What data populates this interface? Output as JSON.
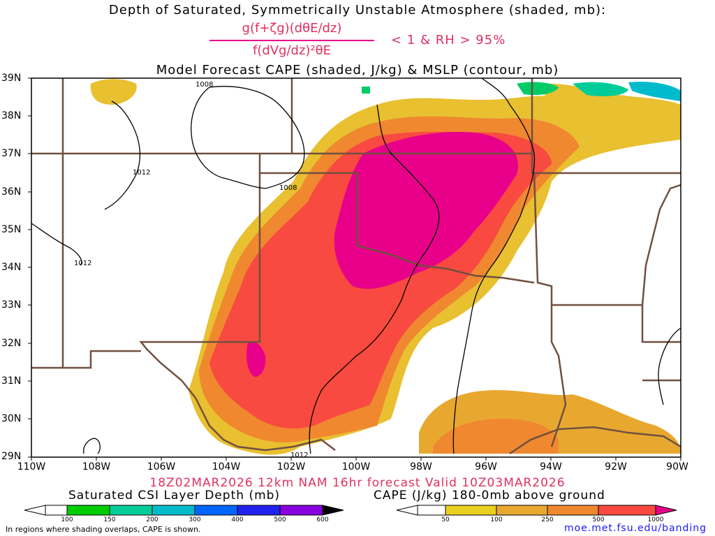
{
  "title_line1": "Depth of Saturated, Symmetrically Unstable Atmosphere (shaded, mb):",
  "formula": {
    "numerator": "g(f+ζg)(dθE/dz)",
    "denominator": "f(dVg/dz)²θE",
    "condition": "< 1 & RH > 95%"
  },
  "title_line3": "Model Forecast CAPE (shaded, J/kg) & MSLP (contour, mb)",
  "map": {
    "lat_labels": [
      "39N",
      "38N",
      "37N",
      "36N",
      "35N",
      "34N",
      "33N",
      "32N",
      "31N",
      "30N",
      "29N"
    ],
    "lon_labels": [
      "110W",
      "108W",
      "106W",
      "104W",
      "102W",
      "100W",
      "98W",
      "96W",
      "94W",
      "92W",
      "90W"
    ],
    "contour_labels": [
      "1008",
      "1012",
      "1008",
      "1012",
      "1012"
    ]
  },
  "valid_line": "18Z02MAR2026 12km NAM 16hr forecast Valid 10Z03MAR2026",
  "colorbar_csi": {
    "label": "Saturated CSI Layer Depth (mb)",
    "ticks": [
      "100",
      "150",
      "200",
      "300",
      "400",
      "500",
      "600"
    ],
    "colors": [
      "#ffffff",
      "#00cc00",
      "#00cc99",
      "#00bbcc",
      "#0066ff",
      "#2222ee",
      "#8800dd",
      "#000000"
    ]
  },
  "colorbar_cape": {
    "label": "CAPE (J/kg) 180-0mb above ground",
    "ticks": [
      "50",
      "100",
      "250",
      "500",
      "1000"
    ],
    "colors": [
      "#ffffff",
      "#e8d020",
      "#e8a830",
      "#f08830",
      "#f84a40",
      "#e8008a"
    ]
  },
  "footer_note": "In regions where shading overlaps, CAPE is shown.",
  "footer_url": "moe.met.fsu.edu/banding"
}
